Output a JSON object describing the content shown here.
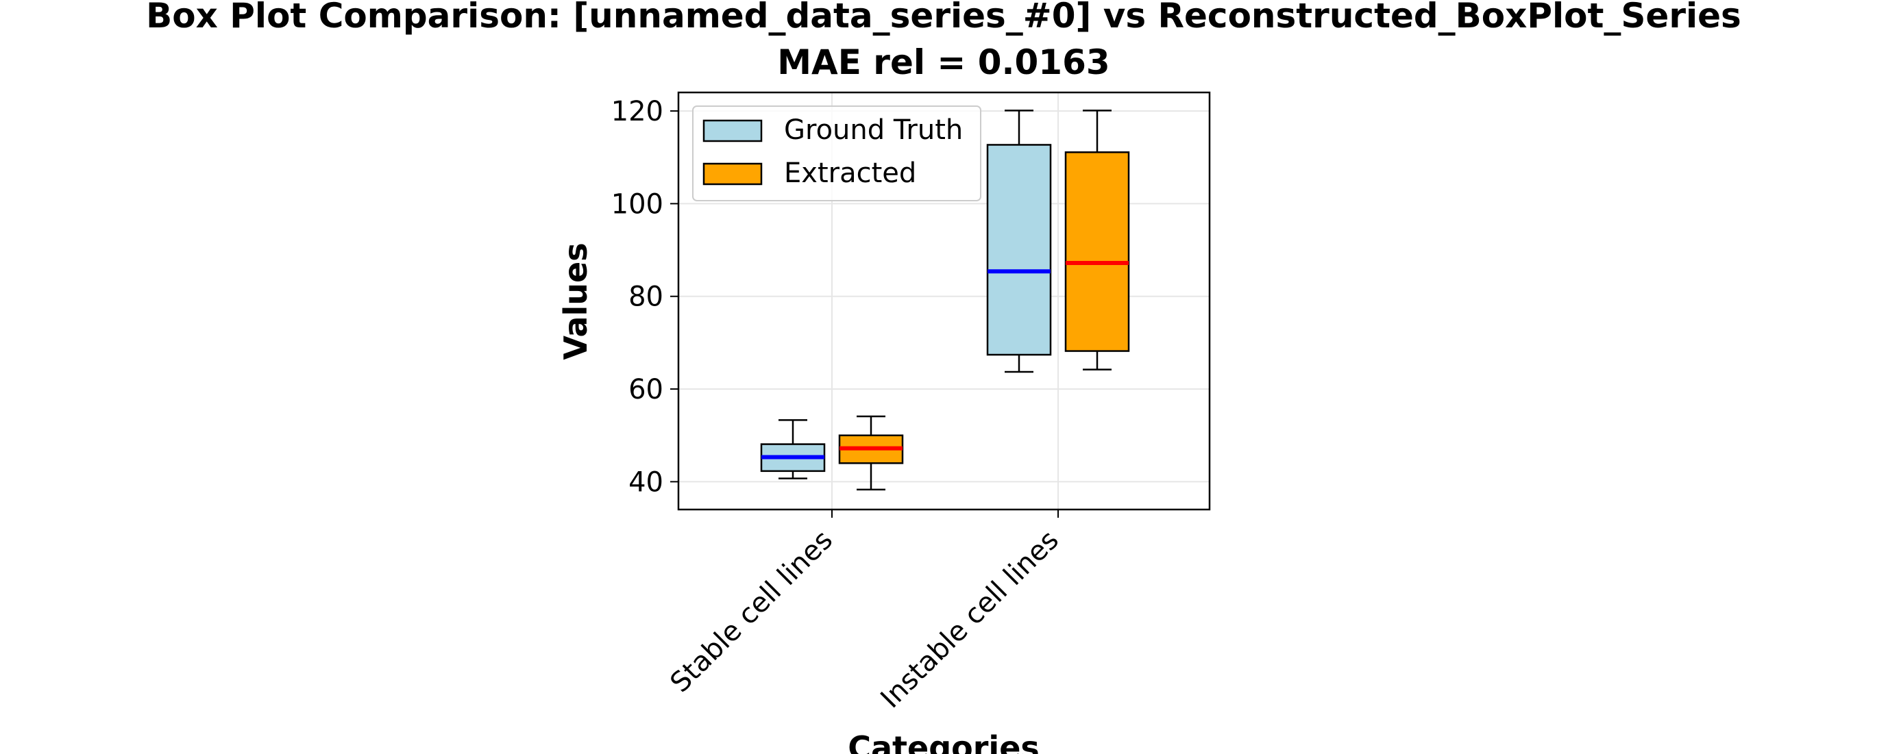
{
  "chart_data": {
    "type": "box",
    "title": "Box Plot Comparison: [unnamed_data_series_#0] vs Reconstructed_BoxPlot_Series",
    "subtitle": "MAE rel = 0.0163",
    "xlabel": "Categories",
    "ylabel": "Values",
    "categories": [
      "Stable cell lines",
      "Instable cell lines"
    ],
    "ylim": [
      34,
      124
    ],
    "yticks": [
      40,
      60,
      80,
      100,
      120
    ],
    "grid": true,
    "legend_position": "top-left",
    "series": [
      {
        "name": "Ground Truth",
        "fill": "#add8e6",
        "median_color": "#0000ff",
        "boxes": [
          {
            "whisker_low": 40.7,
            "q1": 42.3,
            "median": 45.3,
            "q3": 48.1,
            "whisker_high": 53.3
          },
          {
            "whisker_low": 63.7,
            "q1": 67.4,
            "median": 85.4,
            "q3": 112.7,
            "whisker_high": 120.1
          }
        ]
      },
      {
        "name": "Extracted",
        "fill": "#ffa500",
        "median_color": "#ff0000",
        "boxes": [
          {
            "whisker_low": 38.3,
            "q1": 44.0,
            "median": 47.2,
            "q3": 50.0,
            "whisker_high": 54.1
          },
          {
            "whisker_low": 64.2,
            "q1": 68.2,
            "median": 87.2,
            "q3": 111.1,
            "whisker_high": 120.1
          }
        ]
      }
    ]
  }
}
